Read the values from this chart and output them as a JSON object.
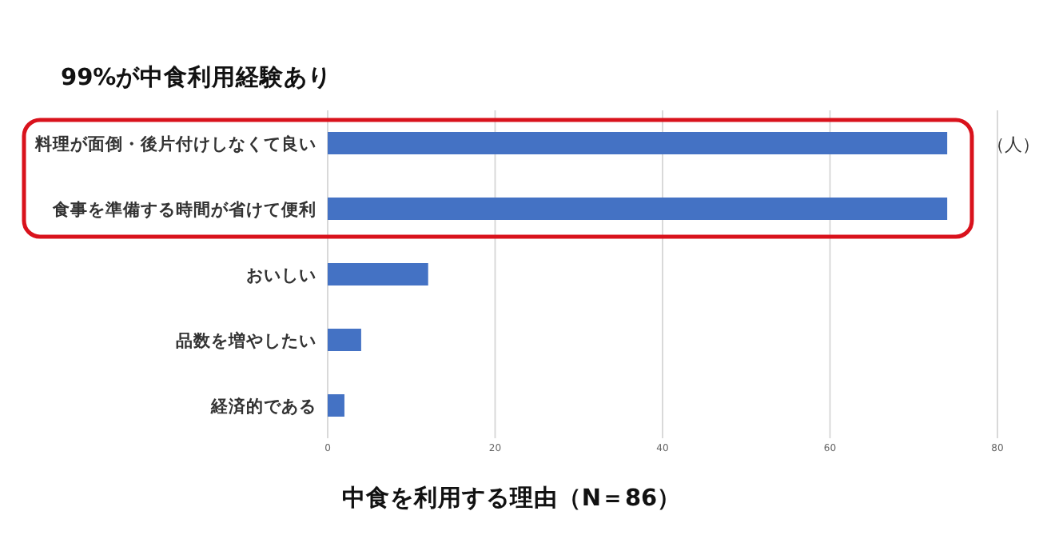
{
  "chart_data": {
    "type": "bar",
    "orientation": "horizontal",
    "title": "99%が中食利用経験あり",
    "categories": [
      "料理が面倒・後片付けしなくて良い",
      "食事を準備する時間が省けて便利",
      "おいしい",
      "品数を増やしたい",
      "経済的である"
    ],
    "values": [
      74,
      74,
      12,
      4,
      2
    ],
    "color": "#4472c4",
    "xlim": [
      0,
      80
    ],
    "xticks": [
      0,
      20,
      40,
      60,
      80
    ],
    "grid": "x",
    "annotations": [
      "（人）",
      "中食を利用する理由（N＝86）"
    ]
  }
}
